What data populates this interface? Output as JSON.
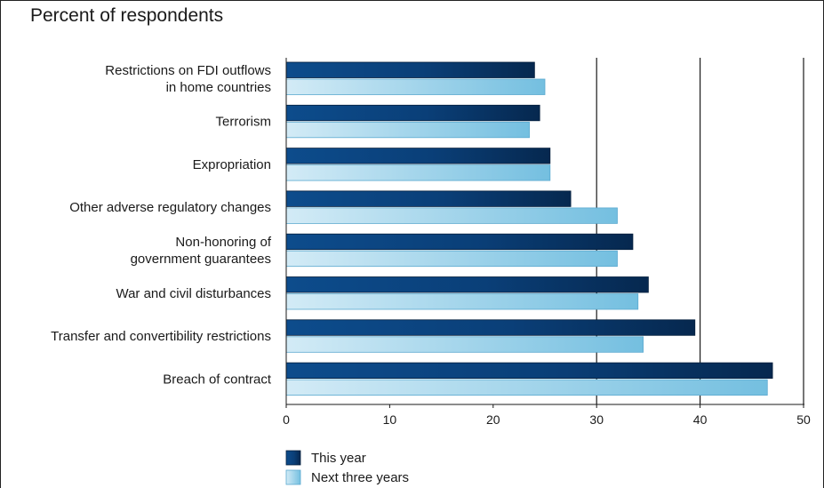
{
  "chart_data": {
    "type": "bar",
    "orientation": "horizontal",
    "title": "Percent of respondents",
    "categories": [
      [
        "Restrictions on FDI outflows",
        "in home countries"
      ],
      [
        "Terrorism"
      ],
      [
        "Expropriation"
      ],
      [
        "Other adverse regulatory changes"
      ],
      [
        "Non-honoring of",
        "government guarantees"
      ],
      [
        "War and civil disturbances"
      ],
      [
        "Transfer and convertibility restrictions"
      ],
      [
        "Breach of contract"
      ]
    ],
    "series": [
      {
        "name": "This year",
        "values": [
          24,
          24.5,
          25.5,
          27.5,
          33.5,
          35,
          39.5,
          47
        ],
        "color": "#0b3f78"
      },
      {
        "name": "Next three years",
        "values": [
          25,
          23.5,
          25.5,
          32,
          32,
          34,
          34.5,
          46.5
        ],
        "color": "#8fcbe6"
      }
    ],
    "xlim": [
      0,
      50
    ],
    "xticks": [
      "0",
      "10",
      "20",
      "30",
      "40",
      "50"
    ],
    "gridlines": [
      30,
      40,
      50
    ],
    "legend_position": "bottom-left"
  }
}
